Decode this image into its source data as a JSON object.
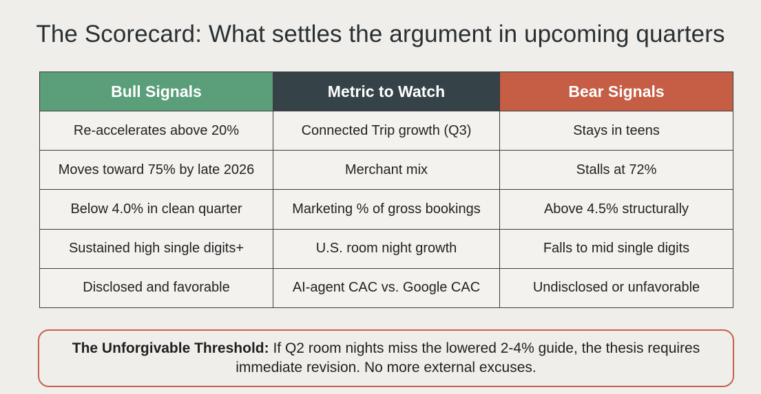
{
  "title": "The Scorecard: What settles the argument in upcoming quarters",
  "colors": {
    "bull_header": "#5a9e7a",
    "metric_header": "#354349",
    "bear_header": "#c65e45",
    "callout_border": "#c4614a"
  },
  "table": {
    "headers": [
      "Bull Signals",
      "Metric to Watch",
      "Bear Signals"
    ],
    "rows": [
      [
        "Re-accelerates above 20%",
        "Connected Trip growth (Q3)",
        "Stays in teens"
      ],
      [
        "Moves toward 75% by late 2026",
        "Merchant mix",
        "Stalls at 72%"
      ],
      [
        "Below 4.0% in clean quarter",
        "Marketing % of gross bookings",
        "Above 4.5% structurally"
      ],
      [
        "Sustained high single digits+",
        "U.S. room night growth",
        "Falls to mid single digits"
      ],
      [
        "Disclosed and favorable",
        "AI-agent CAC vs. Google CAC",
        "Undisclosed or unfavorable"
      ]
    ]
  },
  "callout": {
    "label": "The Unforgivable Threshold:",
    "text": " If Q2 room nights miss the lowered 2-4% guide, the thesis requires immediate revision. No more external excuses."
  }
}
